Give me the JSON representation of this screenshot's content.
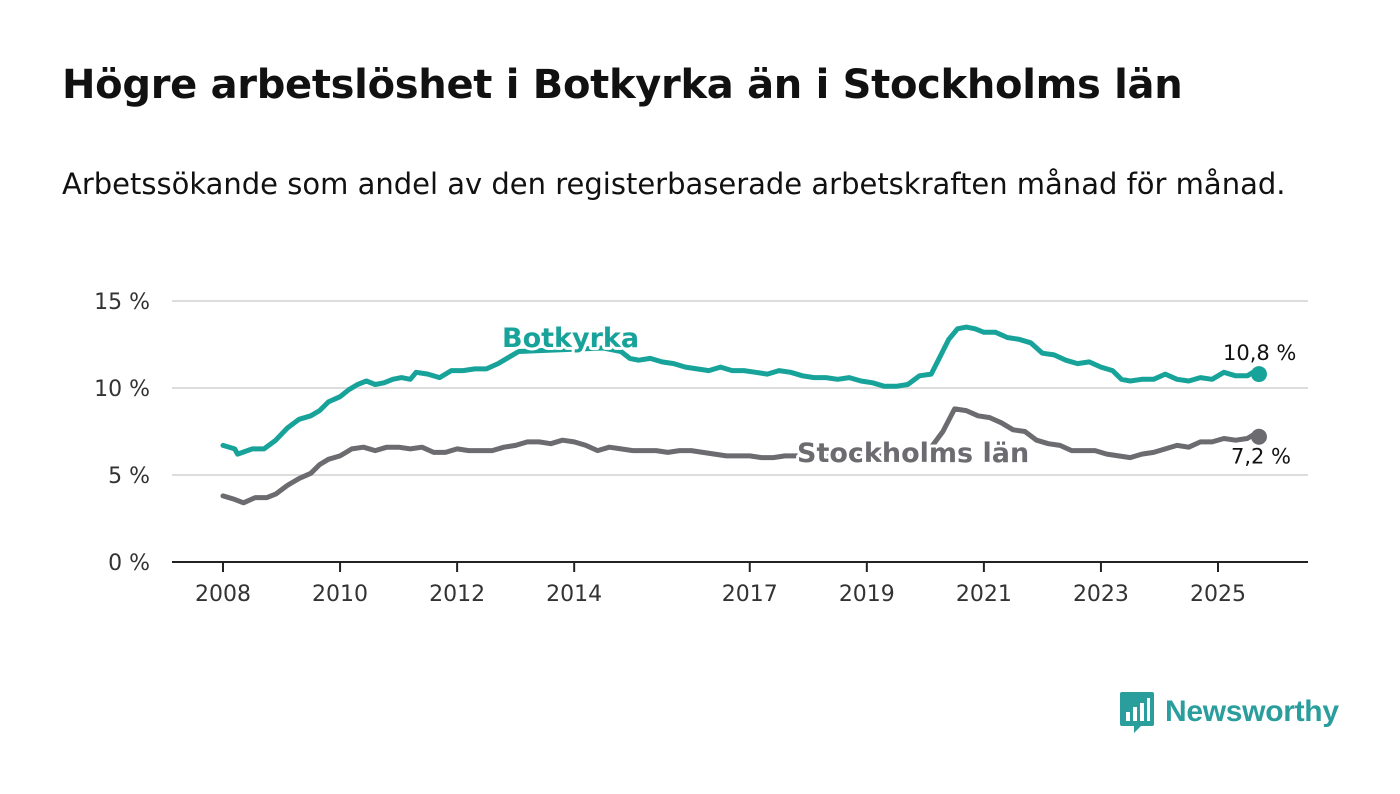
{
  "title": "Högre arbetslöshet i Botkyrka än i Stockholms län",
  "subtitle": "Arbetssökande som andel av den registerbaserade arbetskraften månad för månad.",
  "brand": {
    "name": "Newsworthy",
    "logo_icon": "bar-chart-speech-bubble-icon"
  },
  "colors": {
    "botkyrka": "#17a39a",
    "stockholm": "#6b6b70",
    "grid": "#dddddd",
    "axis": "#222222",
    "brand": "#2a9d9d"
  },
  "chart_data": {
    "type": "line",
    "title": "Högre arbetslöshet i Botkyrka än i Stockholms län",
    "subtitle": "Arbetssökande som andel av den registerbaserade arbetskraften månad för månad.",
    "xlabel": "",
    "ylabel": "",
    "xlim": [
      2008,
      2026.7
    ],
    "ylim": [
      0,
      15
    ],
    "yticks": [
      0,
      5,
      10,
      15
    ],
    "ytick_labels": [
      "0 %",
      "5 %",
      "10 %",
      "15 %"
    ],
    "xticks": [
      2008,
      2010,
      2012,
      2014,
      2017,
      2019,
      2021,
      2023,
      2025
    ],
    "xtick_labels": [
      "2008",
      "2010",
      "2012",
      "2014",
      "2017",
      "2019",
      "2021",
      "2023",
      "2025"
    ],
    "grid": true,
    "series": [
      {
        "name": "Botkyrka",
        "label": "Botkyrka",
        "end_label": "10,8 %",
        "points": [
          [
            2008.0,
            6.7
          ],
          [
            2008.2,
            6.5
          ],
          [
            2008.25,
            6.2
          ],
          [
            2008.5,
            6.5
          ],
          [
            2008.7,
            6.5
          ],
          [
            2008.9,
            7.0
          ],
          [
            2009.1,
            7.7
          ],
          [
            2009.3,
            8.2
          ],
          [
            2009.5,
            8.4
          ],
          [
            2009.65,
            8.7
          ],
          [
            2009.8,
            9.2
          ],
          [
            2010.0,
            9.5
          ],
          [
            2010.15,
            9.9
          ],
          [
            2010.3,
            10.2
          ],
          [
            2010.45,
            10.4
          ],
          [
            2010.6,
            10.2
          ],
          [
            2010.75,
            10.3
          ],
          [
            2010.9,
            10.5
          ],
          [
            2011.05,
            10.6
          ],
          [
            2011.2,
            10.5
          ],
          [
            2011.3,
            10.9
          ],
          [
            2011.5,
            10.8
          ],
          [
            2011.7,
            10.6
          ],
          [
            2011.9,
            11.0
          ],
          [
            2012.1,
            11.0
          ],
          [
            2012.3,
            11.1
          ],
          [
            2012.5,
            11.1
          ],
          [
            2012.7,
            11.4
          ],
          [
            2012.9,
            11.8
          ],
          [
            2013.05,
            12.1
          ],
          [
            2014.5,
            12.3
          ],
          [
            2014.8,
            12.1
          ],
          [
            2014.95,
            11.7
          ],
          [
            2015.1,
            11.6
          ],
          [
            2015.3,
            11.7
          ],
          [
            2015.5,
            11.5
          ],
          [
            2015.7,
            11.4
          ],
          [
            2015.9,
            11.2
          ],
          [
            2016.1,
            11.1
          ],
          [
            2016.3,
            11.0
          ],
          [
            2016.5,
            11.2
          ],
          [
            2016.7,
            11.0
          ],
          [
            2016.9,
            11.0
          ],
          [
            2017.1,
            10.9
          ],
          [
            2017.3,
            10.8
          ],
          [
            2017.5,
            11.0
          ],
          [
            2017.7,
            10.9
          ],
          [
            2017.9,
            10.7
          ],
          [
            2018.1,
            10.6
          ],
          [
            2018.3,
            10.6
          ],
          [
            2018.5,
            10.5
          ],
          [
            2018.7,
            10.6
          ],
          [
            2018.9,
            10.4
          ],
          [
            2019.1,
            10.3
          ],
          [
            2019.3,
            10.1
          ],
          [
            2019.5,
            10.1
          ],
          [
            2019.7,
            10.2
          ],
          [
            2019.9,
            10.7
          ],
          [
            2020.1,
            10.8
          ],
          [
            2020.25,
            11.8
          ],
          [
            2020.4,
            12.8
          ],
          [
            2020.55,
            13.4
          ],
          [
            2020.7,
            13.5
          ],
          [
            2020.85,
            13.4
          ],
          [
            2021.0,
            13.2
          ],
          [
            2021.2,
            13.2
          ],
          [
            2021.4,
            12.9
          ],
          [
            2021.6,
            12.8
          ],
          [
            2021.8,
            12.6
          ],
          [
            2022.0,
            12.0
          ],
          [
            2022.2,
            11.9
          ],
          [
            2022.4,
            11.6
          ],
          [
            2022.6,
            11.4
          ],
          [
            2022.8,
            11.5
          ],
          [
            2023.0,
            11.2
          ],
          [
            2023.2,
            11.0
          ],
          [
            2023.35,
            10.5
          ],
          [
            2023.5,
            10.4
          ],
          [
            2023.7,
            10.5
          ],
          [
            2023.9,
            10.5
          ],
          [
            2024.1,
            10.8
          ],
          [
            2024.3,
            10.5
          ],
          [
            2024.5,
            10.4
          ],
          [
            2024.7,
            10.6
          ],
          [
            2024.9,
            10.5
          ],
          [
            2025.1,
            10.9
          ],
          [
            2025.3,
            10.7
          ],
          [
            2025.5,
            10.7
          ],
          [
            2025.6,
            10.9
          ],
          [
            2025.7,
            10.8
          ]
        ]
      },
      {
        "name": "Stockholms län",
        "label": "Stockholms län",
        "end_label": "7,2 %",
        "points": [
          [
            2008.0,
            3.8
          ],
          [
            2008.2,
            3.6
          ],
          [
            2008.35,
            3.4
          ],
          [
            2008.55,
            3.7
          ],
          [
            2008.75,
            3.7
          ],
          [
            2008.9,
            3.9
          ],
          [
            2009.1,
            4.4
          ],
          [
            2009.3,
            4.8
          ],
          [
            2009.5,
            5.1
          ],
          [
            2009.65,
            5.6
          ],
          [
            2009.8,
            5.9
          ],
          [
            2010.0,
            6.1
          ],
          [
            2010.2,
            6.5
          ],
          [
            2010.4,
            6.6
          ],
          [
            2010.6,
            6.4
          ],
          [
            2010.8,
            6.6
          ],
          [
            2011.0,
            6.6
          ],
          [
            2011.2,
            6.5
          ],
          [
            2011.4,
            6.6
          ],
          [
            2011.6,
            6.3
          ],
          [
            2011.8,
            6.3
          ],
          [
            2012.0,
            6.5
          ],
          [
            2012.2,
            6.4
          ],
          [
            2012.4,
            6.4
          ],
          [
            2012.6,
            6.4
          ],
          [
            2012.8,
            6.6
          ],
          [
            2013.0,
            6.7
          ],
          [
            2013.2,
            6.9
          ],
          [
            2013.4,
            6.9
          ],
          [
            2013.6,
            6.8
          ],
          [
            2013.8,
            7.0
          ],
          [
            2014.0,
            6.9
          ],
          [
            2014.2,
            6.7
          ],
          [
            2014.4,
            6.4
          ],
          [
            2014.6,
            6.6
          ],
          [
            2014.8,
            6.5
          ],
          [
            2015.0,
            6.4
          ],
          [
            2015.2,
            6.4
          ],
          [
            2015.4,
            6.4
          ],
          [
            2015.6,
            6.3
          ],
          [
            2015.8,
            6.4
          ],
          [
            2016.0,
            6.4
          ],
          [
            2016.2,
            6.3
          ],
          [
            2016.4,
            6.2
          ],
          [
            2016.6,
            6.1
          ],
          [
            2016.8,
            6.1
          ],
          [
            2017.0,
            6.1
          ],
          [
            2017.2,
            6.0
          ],
          [
            2017.4,
            6.0
          ],
          [
            2017.6,
            6.1
          ],
          [
            2017.7,
            6.1
          ],
          [
            2019.85,
            6.1
          ],
          [
            2020.1,
            6.6
          ],
          [
            2020.3,
            7.5
          ],
          [
            2020.5,
            8.8
          ],
          [
            2020.7,
            8.7
          ],
          [
            2020.9,
            8.4
          ],
          [
            2021.1,
            8.3
          ],
          [
            2021.3,
            8.0
          ],
          [
            2021.5,
            7.6
          ],
          [
            2021.7,
            7.5
          ],
          [
            2021.9,
            7.0
          ],
          [
            2022.1,
            6.8
          ],
          [
            2022.3,
            6.7
          ],
          [
            2022.5,
            6.4
          ],
          [
            2022.7,
            6.4
          ],
          [
            2022.9,
            6.4
          ],
          [
            2023.1,
            6.2
          ],
          [
            2023.3,
            6.1
          ],
          [
            2023.5,
            6.0
          ],
          [
            2023.7,
            6.2
          ],
          [
            2023.9,
            6.3
          ],
          [
            2024.1,
            6.5
          ],
          [
            2024.3,
            6.7
          ],
          [
            2024.5,
            6.6
          ],
          [
            2024.7,
            6.9
          ],
          [
            2024.9,
            6.9
          ],
          [
            2025.1,
            7.1
          ],
          [
            2025.3,
            7.0
          ],
          [
            2025.5,
            7.1
          ],
          [
            2025.6,
            7.3
          ],
          [
            2025.7,
            7.2
          ]
        ]
      }
    ]
  }
}
